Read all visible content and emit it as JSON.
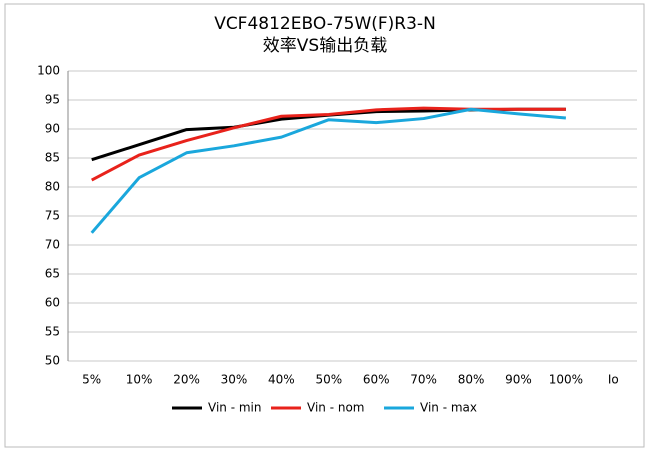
{
  "chart_data": {
    "type": "line",
    "title": "VCF4812EBO-75W(F)R3-N",
    "subtitle": "效率VS输出负载",
    "categories": [
      "5%",
      "10%",
      "20%",
      "30%",
      "40%",
      "50%",
      "60%",
      "70%",
      "80%",
      "90%",
      "100%"
    ],
    "x_label": "Io",
    "series": [
      {
        "name": "Vin - min",
        "color": "#000000",
        "values": [
          84.7,
          87.3,
          89.9,
          90.3,
          91.7,
          92.4,
          93.0,
          93.1,
          93.3,
          93.4,
          93.4
        ]
      },
      {
        "name": "Vin - nom",
        "color": "#e8221b",
        "values": [
          81.2,
          85.5,
          88.0,
          90.2,
          92.2,
          92.5,
          93.3,
          93.6,
          93.4,
          93.4,
          93.4
        ]
      },
      {
        "name": "Vin - max",
        "color": "#1aa7dc",
        "values": [
          72.1,
          81.6,
          85.9,
          87.1,
          88.6,
          91.6,
          91.1,
          91.8,
          93.4,
          92.6,
          91.9
        ]
      }
    ],
    "ylim": [
      50,
      100
    ],
    "yticks": [
      50,
      55,
      60,
      65,
      70,
      75,
      80,
      85,
      90,
      95,
      100
    ],
    "grid": true,
    "legend": "bottom"
  }
}
